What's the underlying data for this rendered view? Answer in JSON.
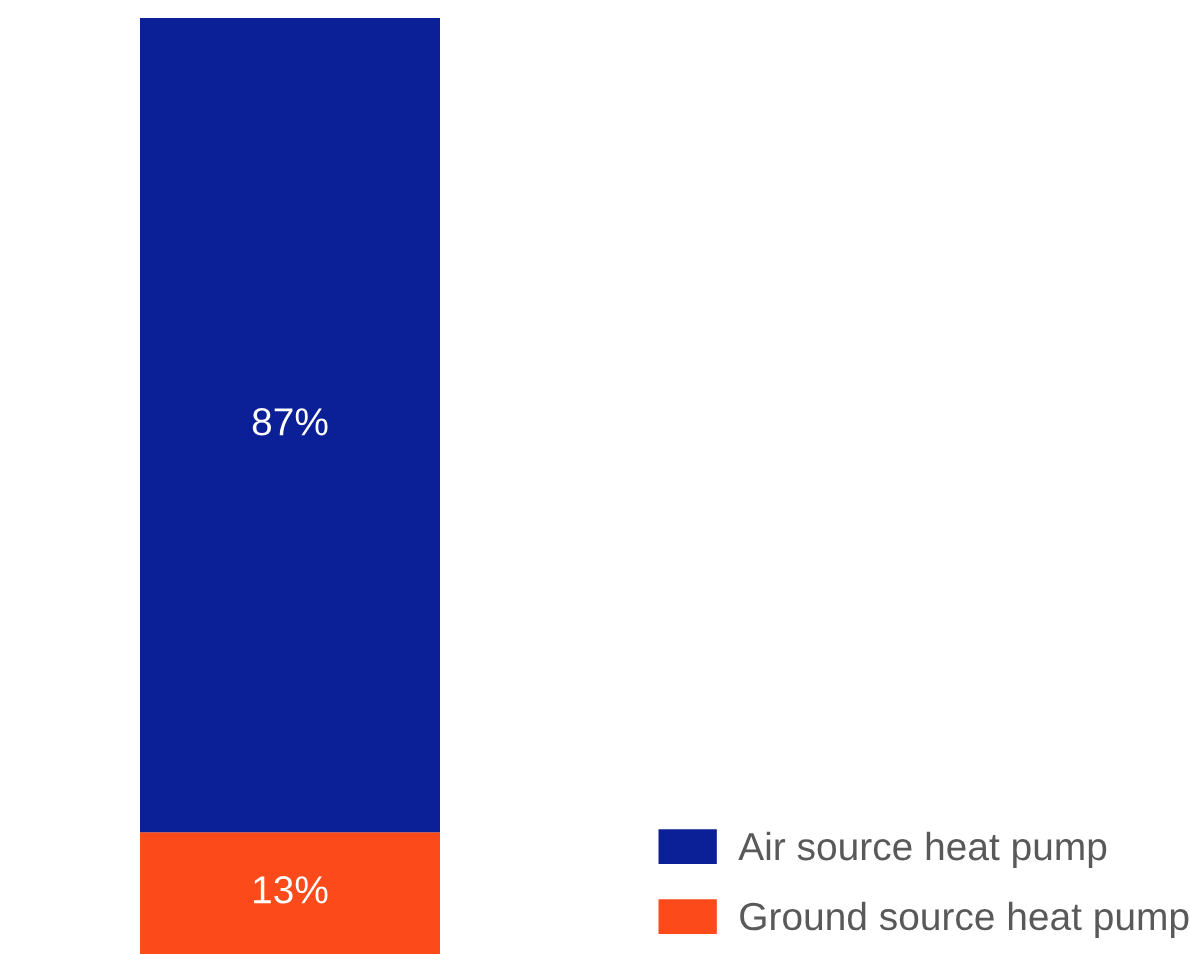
{
  "chart_data": {
    "type": "bar",
    "stacked": true,
    "categories": [
      null
    ],
    "series": [
      {
        "name": "Ground source heat pump",
        "color": "#fc4a1a",
        "values": [
          13
        ],
        "value_labels": [
          "13%"
        ]
      },
      {
        "name": "Air source heat pump",
        "color": "#0b1f96",
        "values": [
          87
        ],
        "value_labels": [
          "87%"
        ]
      }
    ],
    "tick_labels": false,
    "legend": "bottom right"
  }
}
